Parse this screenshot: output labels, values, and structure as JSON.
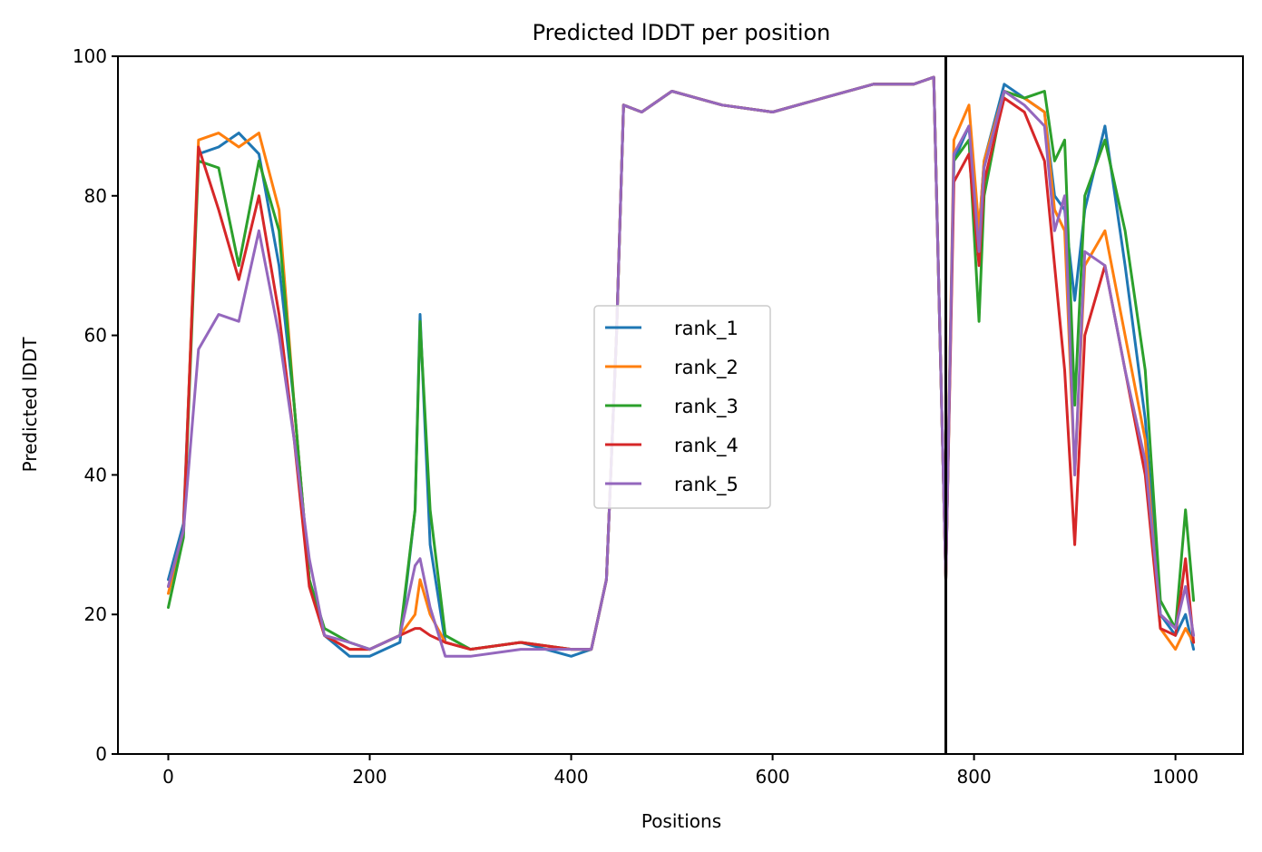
{
  "chart_data": {
    "type": "line",
    "title": "Predicted lDDT per position",
    "xlabel": "Positions",
    "ylabel": "Predicted lDDT",
    "xlim": [
      -50,
      1067
    ],
    "ylim": [
      0,
      100
    ],
    "xticks": [
      0,
      200,
      400,
      600,
      800,
      1000
    ],
    "yticks": [
      0,
      20,
      40,
      60,
      80,
      100
    ],
    "grid": false,
    "legend_position": "center",
    "vline_x": 772,
    "vline_color": "#000000",
    "series": [
      {
        "name": "rank_1",
        "color": "#1f77b4",
        "x": [
          0,
          15,
          30,
          50,
          70,
          90,
          110,
          125,
          140,
          155,
          180,
          200,
          230,
          245,
          250,
          260,
          275,
          300,
          350,
          400,
          420,
          435,
          445,
          452,
          470,
          500,
          550,
          600,
          650,
          700,
          740,
          760,
          772,
          780,
          795,
          805,
          810,
          830,
          850,
          870,
          880,
          890,
          900,
          910,
          930,
          950,
          970,
          985,
          1000,
          1010,
          1018
        ],
        "y": [
          25,
          33,
          86,
          87,
          89,
          86,
          70,
          50,
          25,
          17,
          14,
          14,
          16,
          35,
          63,
          30,
          16,
          15,
          16,
          14,
          15,
          25,
          60,
          93,
          92,
          95,
          93,
          92,
          94,
          96,
          96,
          97,
          25,
          85,
          90,
          75,
          85,
          96,
          94,
          92,
          80,
          78,
          65,
          78,
          90,
          70,
          48,
          20,
          17,
          20,
          15
        ]
      },
      {
        "name": "rank_2",
        "color": "#ff7f0e",
        "x": [
          0,
          15,
          30,
          50,
          70,
          90,
          110,
          125,
          140,
          155,
          180,
          200,
          230,
          245,
          250,
          260,
          275,
          300,
          350,
          400,
          420,
          435,
          445,
          452,
          470,
          500,
          550,
          600,
          650,
          700,
          740,
          760,
          772,
          780,
          795,
          805,
          810,
          830,
          850,
          870,
          880,
          890,
          900,
          910,
          930,
          950,
          970,
          985,
          1000,
          1010,
          1018
        ],
        "y": [
          23,
          32,
          88,
          89,
          87,
          89,
          78,
          50,
          25,
          17,
          15,
          15,
          17,
          20,
          25,
          20,
          16,
          15,
          16,
          15,
          15,
          25,
          60,
          93,
          92,
          95,
          93,
          92,
          94,
          96,
          96,
          97,
          25,
          88,
          93,
          75,
          85,
          95,
          94,
          92,
          78,
          75,
          40,
          70,
          75,
          60,
          45,
          18,
          15,
          18,
          16
        ]
      },
      {
        "name": "rank_3",
        "color": "#2ca02c",
        "x": [
          0,
          15,
          30,
          50,
          70,
          90,
          110,
          125,
          140,
          155,
          180,
          200,
          230,
          245,
          250,
          260,
          275,
          300,
          350,
          400,
          420,
          435,
          445,
          452,
          470,
          500,
          550,
          600,
          650,
          700,
          740,
          760,
          772,
          780,
          795,
          805,
          810,
          830,
          850,
          870,
          880,
          890,
          900,
          910,
          930,
          950,
          970,
          985,
          1000,
          1010,
          1018
        ],
        "y": [
          21,
          31,
          85,
          84,
          70,
          85,
          75,
          50,
          25,
          18,
          16,
          15,
          17,
          35,
          62,
          35,
          17,
          15,
          16,
          15,
          15,
          25,
          60,
          93,
          92,
          95,
          93,
          92,
          94,
          96,
          96,
          97,
          25,
          85,
          88,
          62,
          80,
          95,
          94,
          95,
          85,
          88,
          50,
          80,
          88,
          75,
          55,
          22,
          18,
          35,
          22
        ]
      },
      {
        "name": "rank_4",
        "color": "#d62728",
        "x": [
          0,
          15,
          30,
          50,
          70,
          90,
          110,
          125,
          140,
          155,
          180,
          200,
          230,
          245,
          250,
          260,
          275,
          300,
          350,
          400,
          420,
          435,
          445,
          452,
          470,
          500,
          550,
          600,
          650,
          700,
          740,
          760,
          772,
          780,
          795,
          805,
          810,
          830,
          850,
          870,
          880,
          890,
          900,
          910,
          930,
          950,
          970,
          985,
          1000,
          1010,
          1018
        ],
        "y": [
          24,
          32,
          87,
          78,
          68,
          80,
          63,
          45,
          24,
          17,
          15,
          15,
          17,
          18,
          18,
          17,
          16,
          15,
          16,
          15,
          15,
          25,
          60,
          93,
          92,
          95,
          93,
          92,
          94,
          96,
          96,
          97,
          25,
          82,
          86,
          70,
          82,
          94,
          92,
          85,
          70,
          55,
          30,
          60,
          70,
          55,
          40,
          18,
          17,
          28,
          16
        ]
      },
      {
        "name": "rank_5",
        "color": "#9467bd",
        "x": [
          0,
          15,
          30,
          50,
          70,
          90,
          110,
          125,
          140,
          155,
          180,
          200,
          230,
          245,
          250,
          260,
          275,
          300,
          350,
          400,
          420,
          435,
          445,
          452,
          470,
          500,
          550,
          600,
          650,
          700,
          740,
          760,
          772,
          780,
          795,
          805,
          810,
          830,
          850,
          870,
          880,
          890,
          900,
          910,
          930,
          950,
          970,
          985,
          1000,
          1010,
          1018
        ],
        "y": [
          24,
          32,
          58,
          63,
          62,
          75,
          60,
          45,
          28,
          17,
          16,
          15,
          17,
          27,
          28,
          21,
          14,
          14,
          15,
          15,
          15,
          25,
          60,
          93,
          92,
          95,
          93,
          92,
          94,
          96,
          96,
          97,
          25,
          86,
          90,
          72,
          84,
          95,
          93,
          90,
          75,
          80,
          40,
          72,
          70,
          55,
          42,
          20,
          18,
          24,
          17
        ]
      }
    ]
  }
}
